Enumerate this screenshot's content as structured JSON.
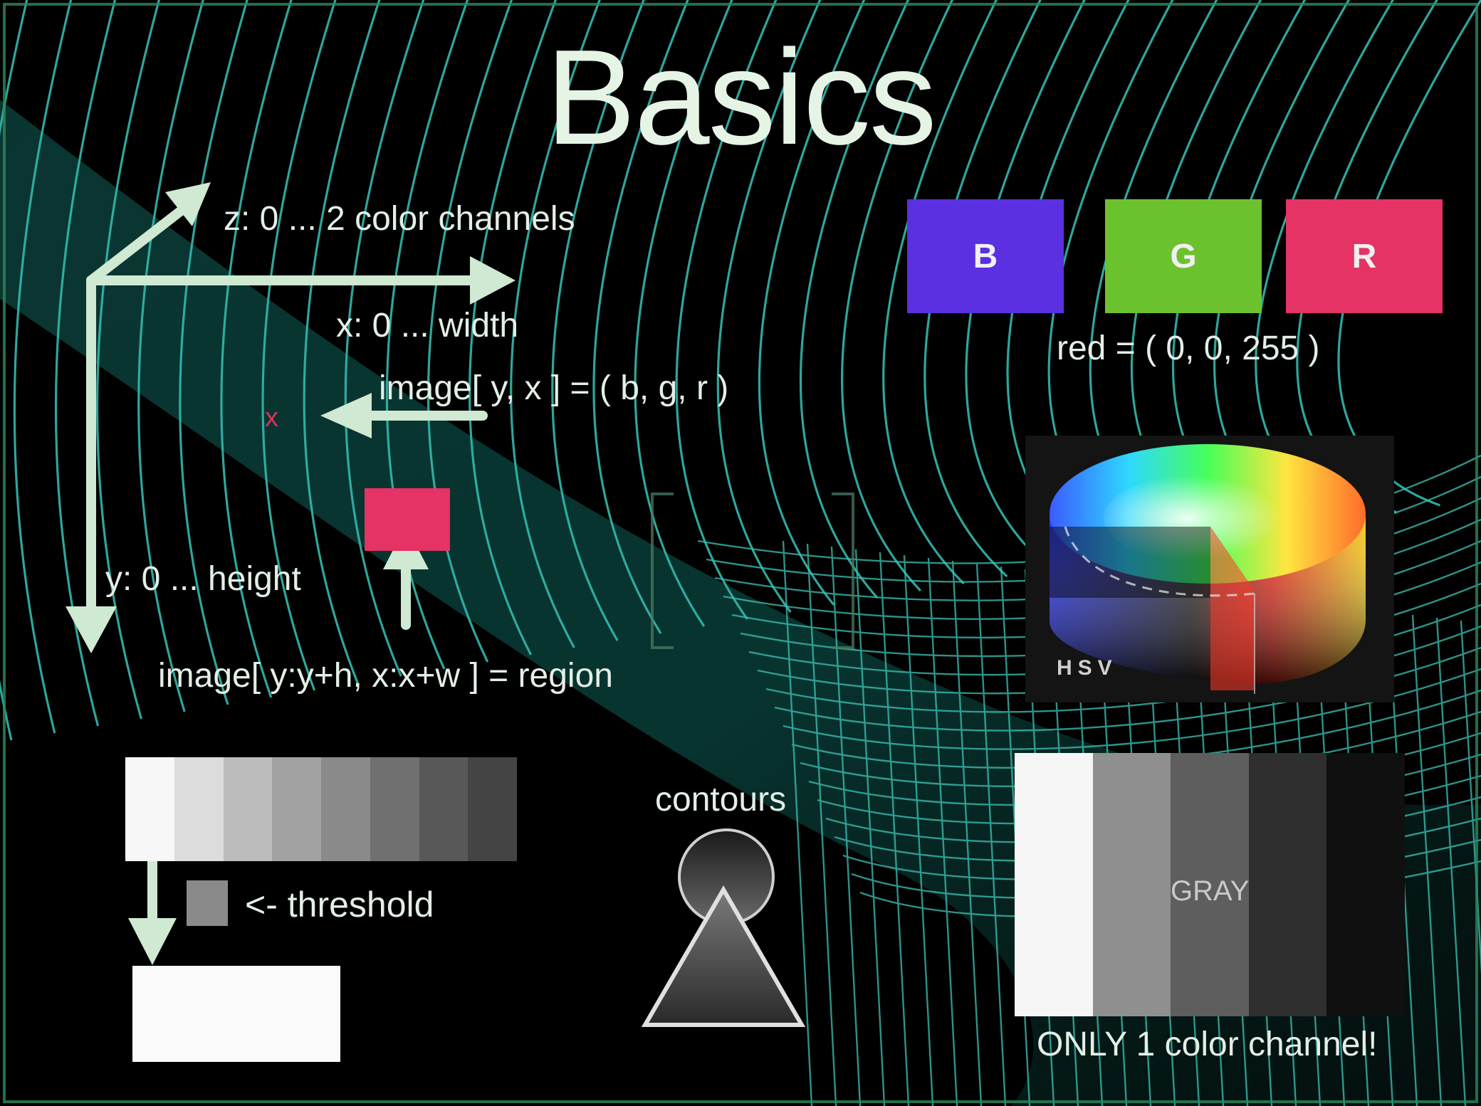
{
  "title": "Basics",
  "axes": {
    "z_label": "z: 0 ... 2 color channels",
    "x_label": "x: 0 ... width",
    "y_label": "y: 0 ... height"
  },
  "pixel_access": {
    "expression": "image[ y, x ] = ( b, g, r )",
    "marker": "x",
    "marker_color": "#d8325a"
  },
  "region": {
    "expression": "image[ y:y+h, x:x+w ] = region",
    "box_color": "#e43364"
  },
  "channels": [
    {
      "label": "B",
      "color": "#5a30e0"
    },
    {
      "label": "G",
      "color": "#6cc22e"
    },
    {
      "label": "R",
      "color": "#e43364"
    }
  ],
  "red_value": "red = ( 0, 0, 255 )",
  "hsv": {
    "label": "HSV"
  },
  "threshold": {
    "label": "<- threshold",
    "gradient_levels": [
      "#f7f7f7",
      "#dcdcdc",
      "#bcbcbc",
      "#a2a2a2",
      "#8a8a8a",
      "#707070",
      "#585858",
      "#444444"
    ],
    "swatch_color": "#8a8a8a"
  },
  "contours": {
    "label": "contours"
  },
  "gray": {
    "label": "GRAY",
    "note": "ONLY 1 color channel!",
    "levels": [
      "#f5f5f5",
      "#8f8f8f",
      "#5e5e5e",
      "#2f2f2f",
      "#101010"
    ]
  },
  "colors": {
    "arrow": "#cfe9d2",
    "wave": "#34b8ad",
    "text": "#e3efe6"
  }
}
